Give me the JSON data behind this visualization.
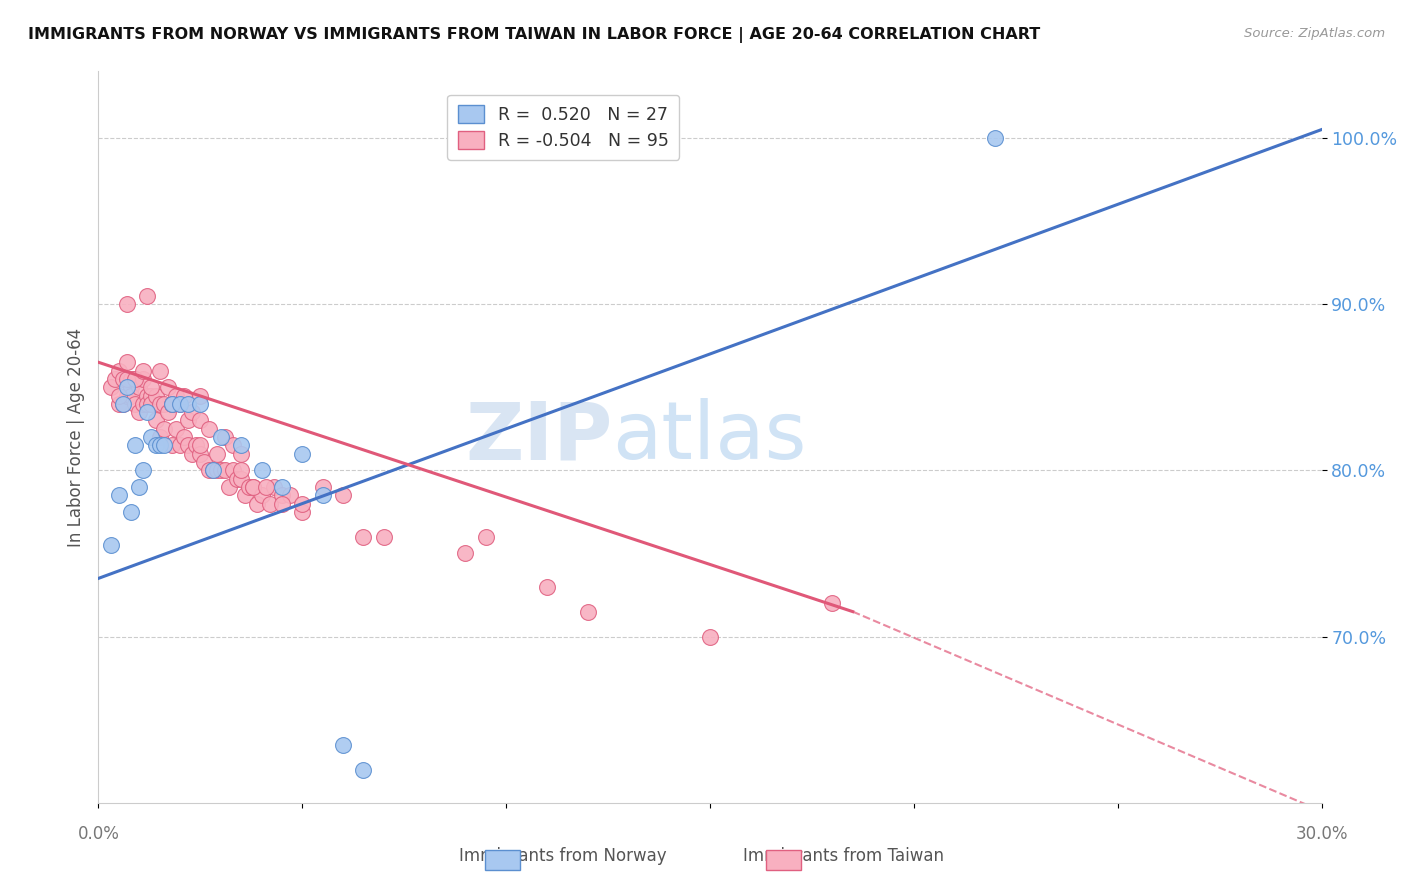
{
  "title": "IMMIGRANTS FROM NORWAY VS IMMIGRANTS FROM TAIWAN IN LABOR FORCE | AGE 20-64 CORRELATION CHART",
  "source": "Source: ZipAtlas.com",
  "ylabel": "In Labor Force | Age 20-64",
  "xlim": [
    0.0,
    0.3
  ],
  "ylim": [
    0.6,
    1.04
  ],
  "xticks": [
    0.0,
    0.05,
    0.1,
    0.15,
    0.2,
    0.25,
    0.3
  ],
  "xtick_labels": [
    "",
    "",
    "",
    "",
    "",
    "",
    ""
  ],
  "yticks": [
    0.7,
    0.8,
    0.9,
    1.0
  ],
  "ytick_labels": [
    "70.0%",
    "80.0%",
    "90.0%",
    "100.0%"
  ],
  "norway_color": "#A8C8F0",
  "taiwan_color": "#F8B0C0",
  "norway_edge_color": "#5B8FD0",
  "taiwan_edge_color": "#E06080",
  "norway_line_color": "#4472C4",
  "taiwan_line_color": "#E05878",
  "norway_R": 0.52,
  "norway_N": 27,
  "taiwan_R": -0.504,
  "taiwan_N": 95,
  "watermark_zip": "ZIP",
  "watermark_atlas": "atlas",
  "norway_line_x0": 0.0,
  "norway_line_y0": 0.735,
  "norway_line_x1": 0.3,
  "norway_line_y1": 1.005,
  "taiwan_line_x0": 0.0,
  "taiwan_line_y0": 0.865,
  "taiwan_line_x1_solid": 0.185,
  "taiwan_line_y1_solid": 0.715,
  "taiwan_line_x1_dash": 0.3,
  "taiwan_line_y1_dash": 0.595,
  "norway_scatter_x": [
    0.003,
    0.005,
    0.006,
    0.007,
    0.008,
    0.009,
    0.01,
    0.011,
    0.012,
    0.013,
    0.014,
    0.015,
    0.016,
    0.018,
    0.02,
    0.022,
    0.025,
    0.028,
    0.03,
    0.035,
    0.04,
    0.045,
    0.05,
    0.055,
    0.06,
    0.22,
    0.065
  ],
  "norway_scatter_y": [
    0.755,
    0.785,
    0.84,
    0.85,
    0.775,
    0.815,
    0.79,
    0.8,
    0.835,
    0.82,
    0.815,
    0.815,
    0.815,
    0.84,
    0.84,
    0.84,
    0.84,
    0.8,
    0.82,
    0.815,
    0.8,
    0.79,
    0.81,
    0.785,
    0.635,
    1.0,
    0.62
  ],
  "taiwan_scatter_x": [
    0.003,
    0.004,
    0.005,
    0.005,
    0.006,
    0.006,
    0.007,
    0.007,
    0.008,
    0.008,
    0.008,
    0.009,
    0.009,
    0.01,
    0.01,
    0.011,
    0.011,
    0.012,
    0.012,
    0.013,
    0.013,
    0.014,
    0.014,
    0.015,
    0.015,
    0.016,
    0.016,
    0.017,
    0.018,
    0.018,
    0.019,
    0.02,
    0.02,
    0.021,
    0.022,
    0.022,
    0.023,
    0.024,
    0.025,
    0.025,
    0.026,
    0.027,
    0.028,
    0.029,
    0.03,
    0.031,
    0.032,
    0.033,
    0.034,
    0.035,
    0.036,
    0.037,
    0.038,
    0.039,
    0.04,
    0.042,
    0.043,
    0.045,
    0.047,
    0.05,
    0.005,
    0.007,
    0.009,
    0.011,
    0.013,
    0.015,
    0.017,
    0.019,
    0.021,
    0.023,
    0.025,
    0.027,
    0.029,
    0.031,
    0.033,
    0.035,
    0.038,
    0.041,
    0.045,
    0.05,
    0.055,
    0.06,
    0.065,
    0.07,
    0.09,
    0.12,
    0.15,
    0.18,
    0.095,
    0.11,
    0.007,
    0.012,
    0.018,
    0.025,
    0.035
  ],
  "taiwan_scatter_y": [
    0.85,
    0.855,
    0.86,
    0.84,
    0.855,
    0.84,
    0.845,
    0.865,
    0.85,
    0.845,
    0.855,
    0.84,
    0.855,
    0.85,
    0.835,
    0.84,
    0.855,
    0.845,
    0.84,
    0.845,
    0.84,
    0.845,
    0.83,
    0.84,
    0.82,
    0.84,
    0.825,
    0.835,
    0.84,
    0.815,
    0.825,
    0.84,
    0.815,
    0.82,
    0.815,
    0.83,
    0.81,
    0.815,
    0.81,
    0.815,
    0.805,
    0.8,
    0.8,
    0.8,
    0.8,
    0.8,
    0.79,
    0.8,
    0.795,
    0.795,
    0.785,
    0.79,
    0.79,
    0.78,
    0.785,
    0.78,
    0.79,
    0.785,
    0.785,
    0.775,
    0.845,
    0.855,
    0.855,
    0.86,
    0.85,
    0.86,
    0.85,
    0.845,
    0.845,
    0.835,
    0.83,
    0.825,
    0.81,
    0.82,
    0.815,
    0.8,
    0.79,
    0.79,
    0.78,
    0.78,
    0.79,
    0.785,
    0.76,
    0.76,
    0.75,
    0.715,
    0.7,
    0.72,
    0.76,
    0.73,
    0.9,
    0.905,
    0.84,
    0.845,
    0.81
  ]
}
